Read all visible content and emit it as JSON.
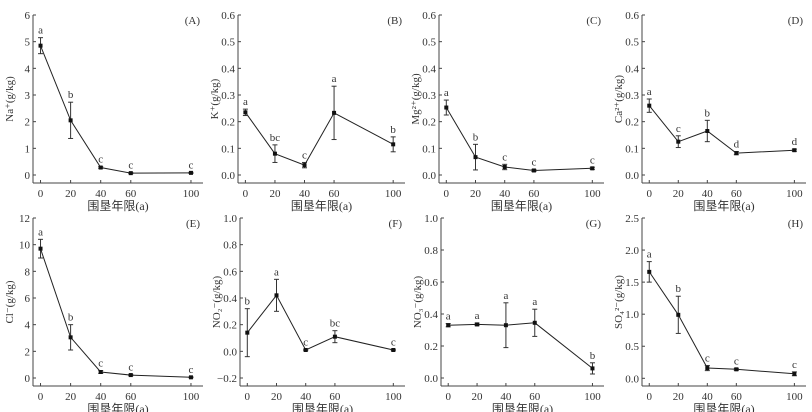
{
  "figure": {
    "xlabel_common": "围垦年限(a)"
  },
  "chart_data": [
    {
      "panel": "(A)",
      "type": "line",
      "title": "",
      "ylabel": "Na⁺(g/kg)",
      "xlabel": "围垦年限(a)",
      "x": [
        0,
        20,
        40,
        60,
        100
      ],
      "xticks": [
        "0",
        "20",
        "40",
        "60",
        "100"
      ],
      "ylim": [
        -0.3,
        6
      ],
      "yticks": [
        "0",
        "1",
        "2",
        "3",
        "4",
        "5",
        "6"
      ],
      "ytick_values": [
        0,
        1,
        2,
        3,
        4,
        5,
        6
      ],
      "series": [
        {
          "name": "Na+",
          "values": [
            4.85,
            2.05,
            0.28,
            0.07,
            0.08
          ],
          "error": [
            0.3,
            0.68,
            0.03,
            0.02,
            0.02
          ],
          "significance": [
            "a",
            "b",
            "c",
            "c",
            "c"
          ]
        }
      ]
    },
    {
      "panel": "(B)",
      "type": "line",
      "title": "",
      "ylabel": "K⁺(g/kg)",
      "xlabel": "围垦年限(a)",
      "x": [
        0,
        20,
        40,
        60,
        100
      ],
      "xticks": [
        "0",
        "20",
        "40",
        "60",
        "100"
      ],
      "ylim": [
        -0.03,
        0.6
      ],
      "yticks": [
        "0.0",
        "0.1",
        "0.2",
        "0.3",
        "0.4",
        "0.5",
        "0.6"
      ],
      "ytick_values": [
        0,
        0.1,
        0.2,
        0.3,
        0.4,
        0.5,
        0.6
      ],
      "series": [
        {
          "name": "K+",
          "values": [
            0.235,
            0.08,
            0.037,
            0.233,
            0.115
          ],
          "error": [
            0.012,
            0.033,
            0.01,
            0.1,
            0.028
          ],
          "significance": [
            "a",
            "bc",
            "c",
            "a",
            "b"
          ]
        }
      ]
    },
    {
      "panel": "(C)",
      "type": "line",
      "title": "",
      "ylabel": "Mg²⁺(g/kg)",
      "xlabel": "围垦年限(a)",
      "x": [
        0,
        20,
        40,
        60,
        100
      ],
      "xticks": [
        "0",
        "20",
        "40",
        "60",
        "100"
      ],
      "ylim": [
        -0.03,
        0.6
      ],
      "yticks": [
        "0.0",
        "0.1",
        "0.2",
        "0.3",
        "0.4",
        "0.5",
        "0.6"
      ],
      "ytick_values": [
        0,
        0.1,
        0.2,
        0.3,
        0.4,
        0.5,
        0.6
      ],
      "series": [
        {
          "name": "Mg2+",
          "values": [
            0.253,
            0.067,
            0.03,
            0.017,
            0.025
          ],
          "error": [
            0.028,
            0.048,
            0.01,
            0.004,
            0.004
          ],
          "significance": [
            "a",
            "b",
            "c",
            "c",
            "c"
          ]
        }
      ]
    },
    {
      "panel": "(D)",
      "type": "line",
      "title": "",
      "ylabel": "Ca²⁺(g/kg)",
      "xlabel": "围垦年限(a)",
      "x": [
        0,
        20,
        40,
        60,
        100
      ],
      "xticks": [
        "0",
        "20",
        "40",
        "60",
        "100"
      ],
      "ylim": [
        -0.03,
        0.6
      ],
      "yticks": [
        "0.0",
        "0.1",
        "0.2",
        "0.3",
        "0.4",
        "0.5",
        "0.6"
      ],
      "ytick_values": [
        0,
        0.1,
        0.2,
        0.3,
        0.4,
        0.5,
        0.6
      ],
      "series": [
        {
          "name": "Ca2+",
          "values": [
            0.26,
            0.125,
            0.165,
            0.082,
            0.093
          ],
          "error": [
            0.025,
            0.022,
            0.04,
            0.006,
            0.004
          ],
          "significance": [
            "a",
            "c",
            "b",
            "d",
            "d"
          ]
        }
      ]
    },
    {
      "panel": "(E)",
      "type": "line",
      "title": "",
      "ylabel": "Cl⁻(g/kg)",
      "xlabel": "围垦年限(a)",
      "x": [
        0,
        20,
        40,
        60,
        100
      ],
      "xticks": [
        "0",
        "20",
        "40",
        "60",
        "100"
      ],
      "ylim": [
        -0.6,
        12
      ],
      "yticks": [
        "0",
        "2",
        "4",
        "6",
        "8",
        "10",
        "12"
      ],
      "ytick_values": [
        0,
        2,
        4,
        6,
        8,
        10,
        12
      ],
      "series": [
        {
          "name": "Cl-",
          "values": [
            9.7,
            3.05,
            0.45,
            0.22,
            0.05
          ],
          "error": [
            0.7,
            0.95,
            0.1,
            0.05,
            0.03
          ],
          "significance": [
            "a",
            "b",
            "c",
            "c",
            "c"
          ]
        }
      ]
    },
    {
      "panel": "(F)",
      "type": "line",
      "title": "",
      "ylabel": "NO₂⁻(g/kg)",
      "xlabel": "围垦年限(a)",
      "x": [
        0,
        20,
        40,
        60,
        100
      ],
      "xticks": [
        "0",
        "20",
        "40",
        "60",
        "100"
      ],
      "ylim": [
        -0.26,
        1.0
      ],
      "yticks": [
        "−0.2",
        "0.0",
        "0.2",
        "0.4",
        "0.6",
        "0.8",
        "1.0"
      ],
      "ytick_values": [
        -0.2,
        0,
        0.2,
        0.4,
        0.6,
        0.8,
        1.0
      ],
      "series": [
        {
          "name": "NO2-",
          "values": [
            0.14,
            0.42,
            0.01,
            0.11,
            0.01
          ],
          "error": [
            0.18,
            0.12,
            0.005,
            0.045,
            0.005
          ],
          "significance": [
            "b",
            "a",
            "c",
            "bc",
            "c"
          ]
        }
      ]
    },
    {
      "panel": "(G)",
      "type": "line",
      "title": "",
      "ylabel": "NO₃⁻(g/kg)",
      "xlabel": "围垦年限(a)",
      "x": [
        0,
        20,
        40,
        60,
        100
      ],
      "xticks": [
        "0",
        "20",
        "40",
        "60",
        "100"
      ],
      "ylim": [
        -0.05,
        1.0
      ],
      "yticks": [
        "0.0",
        "0.2",
        "0.4",
        "0.6",
        "0.8",
        "1.0"
      ],
      "ytick_values": [
        0,
        0.2,
        0.4,
        0.6,
        0.8,
        1.0
      ],
      "series": [
        {
          "name": "NO3-",
          "values": [
            0.33,
            0.335,
            0.33,
            0.345,
            0.06
          ],
          "error": [
            0.01,
            0.008,
            0.14,
            0.085,
            0.035
          ],
          "significance": [
            "a",
            "a",
            "a",
            "a",
            "b"
          ]
        }
      ]
    },
    {
      "panel": "(H)",
      "type": "line",
      "title": "",
      "ylabel": "SO₄²⁻(g/kg)",
      "xlabel": "围垦年限(a)",
      "x": [
        0,
        20,
        40,
        60,
        100
      ],
      "xticks": [
        "0",
        "20",
        "40",
        "60",
        "100"
      ],
      "ylim": [
        -0.12,
        2.5
      ],
      "yticks": [
        "0.0",
        "0.5",
        "1.0",
        "1.5",
        "2.0",
        "2.5"
      ],
      "ytick_values": [
        0,
        0.5,
        1.0,
        1.5,
        2.0,
        2.5
      ],
      "series": [
        {
          "name": "SO42-",
          "values": [
            1.66,
            0.99,
            0.16,
            0.14,
            0.07
          ],
          "error": [
            0.16,
            0.29,
            0.04,
            0.015,
            0.03
          ],
          "significance": [
            "a",
            "b",
            "c",
            "c",
            "c"
          ]
        }
      ]
    }
  ]
}
